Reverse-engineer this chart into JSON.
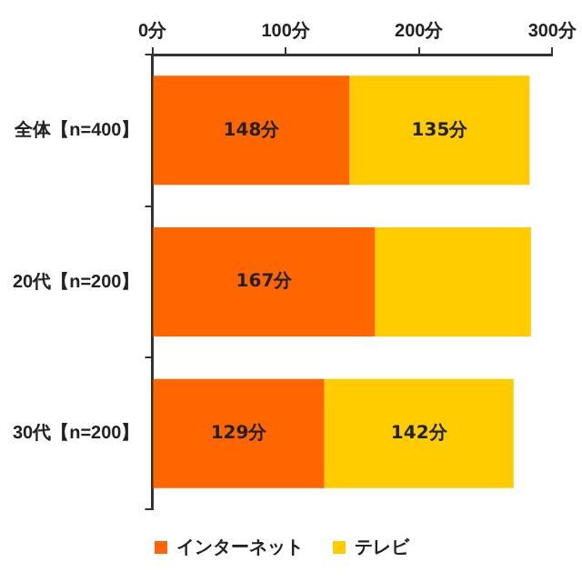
{
  "chart_data": {
    "type": "bar",
    "orientation": "horizontal",
    "stacked": true,
    "categories": [
      "全体【n=400】",
      "20代【n=200】",
      "30代【n=200】"
    ],
    "series": [
      {
        "name": "インターネット",
        "color": "#ff6600",
        "values": [
          148,
          167,
          129
        ],
        "value_labels": [
          "148分",
          "167分",
          "129分"
        ]
      },
      {
        "name": "テレビ",
        "color": "#ffcc00",
        "values": [
          135,
          117,
          142
        ],
        "value_labels": [
          "135分",
          null,
          "142分"
        ]
      }
    ],
    "xlim": [
      0,
      300
    ],
    "xticks": [
      {
        "value": 0,
        "label": "0分"
      },
      {
        "value": 100,
        "label": "100分"
      },
      {
        "value": 200,
        "label": "200分"
      },
      {
        "value": 300,
        "label": "300分"
      }
    ],
    "grid": false,
    "legend": "bottom"
  }
}
